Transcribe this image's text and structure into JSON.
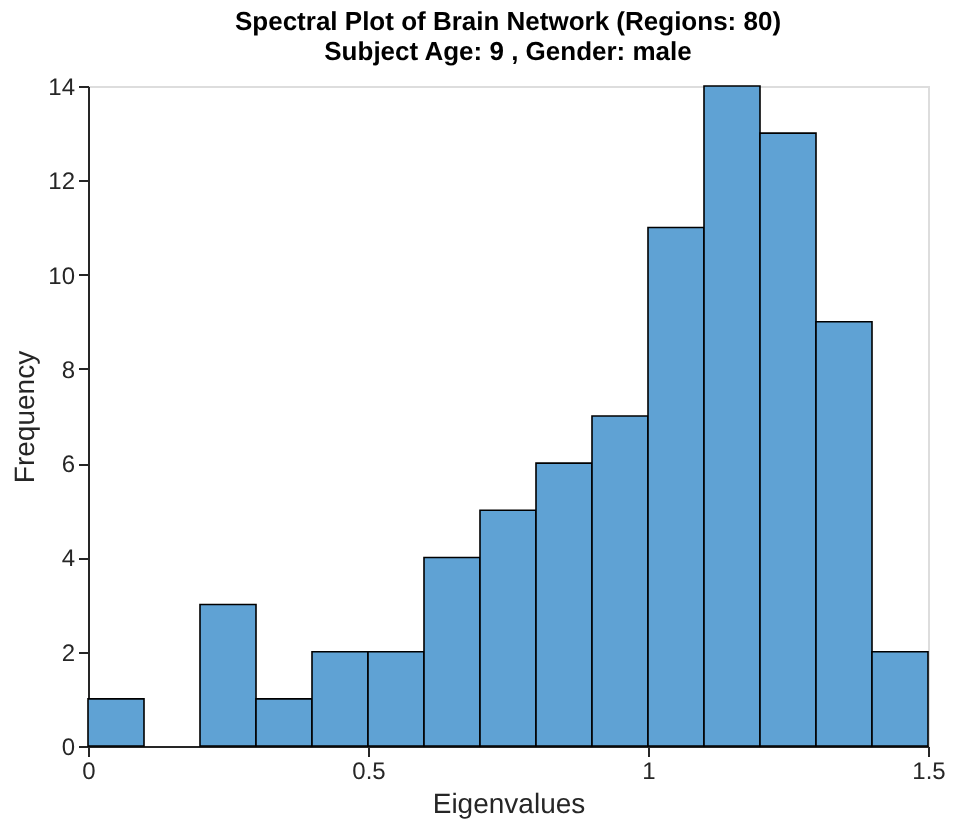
{
  "chart_data": {
    "type": "histogram",
    "title": [
      "Spectral Plot of Brain Network (Regions: 80)",
      "Subject Age: 9 , Gender:  male"
    ],
    "xlabel": "Eigenvalues",
    "ylabel": "Frequency",
    "bins": [
      0,
      0.1,
      0.2,
      0.3,
      0.4,
      0.5,
      0.6,
      0.7,
      0.8,
      0.9,
      1.0,
      1.1,
      1.2,
      1.3,
      1.4,
      1.5
    ],
    "values": [
      1,
      0,
      3,
      1,
      2,
      2,
      4,
      5,
      6,
      7,
      11,
      14,
      13,
      9,
      2
    ],
    "color": "#5fa2d4",
    "xlim": [
      0,
      1.5
    ],
    "xticks": [
      0,
      0.5,
      1,
      1.5
    ],
    "ylim": [
      0,
      14
    ],
    "yticks": [
      0,
      2,
      4,
      6,
      8,
      10,
      12,
      14
    ],
    "grid": false
  }
}
